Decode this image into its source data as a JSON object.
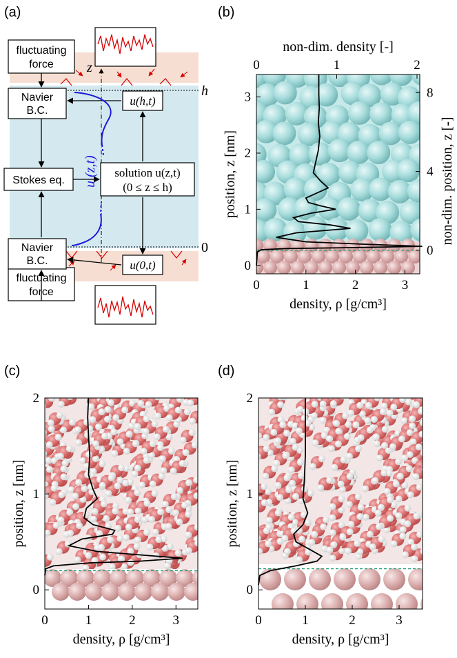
{
  "panel_a": {
    "label": "(a)",
    "top_force": [
      "fluctuating",
      "force"
    ],
    "bottom_force": [
      "fluctuating",
      "force"
    ],
    "navier_top": [
      "Navier",
      "B.C."
    ],
    "navier_bottom": [
      "Navier",
      "B.C."
    ],
    "stokes": "Stokes eq.",
    "solution_line1": "solution u(z,t)",
    "solution_line2": "(0 ≤ z ≤ h)",
    "u_top": "u(h,t)",
    "u_bottom": "u(0,t)",
    "profile_label": "u (z,t)",
    "z_axis": "z",
    "h_label": "h",
    "zero_label": "0"
  },
  "chart_data": [
    {
      "panel": "(b)",
      "type": "line",
      "xlabel": "density, ρ [g/cm³]",
      "ylabel": "position, z [nm]",
      "top_xlabel": "non-dim. density [-]",
      "right_ylabel": "non-dim. position, z [-]",
      "xlim": [
        0,
        3.3
      ],
      "ylim": [
        -0.15,
        3.4
      ],
      "xticks": [
        "0",
        "1",
        "2",
        "3"
      ],
      "yticks": [
        "0",
        "1",
        "2",
        "3"
      ],
      "top_ticks": [
        "0",
        "1",
        "2"
      ],
      "right_ticks": [
        "0",
        "4",
        "8"
      ],
      "wall_line_z": 0.27,
      "x": [
        0,
        0.02,
        0.1,
        0.6,
        2.2,
        3.35,
        2.4,
        1.0,
        0.4,
        0.8,
        1.9,
        1.5,
        0.85,
        0.75,
        1.1,
        1.6,
        1.3,
        1.05,
        1.0,
        1.2,
        1.45,
        1.3,
        1.15,
        1.2,
        1.25,
        1.28,
        1.25,
        1.27,
        1.26,
        1.26,
        1.26
      ],
      "y": [
        0.0,
        0.24,
        0.28,
        0.3,
        0.32,
        0.34,
        0.37,
        0.42,
        0.5,
        0.58,
        0.66,
        0.72,
        0.78,
        0.85,
        0.93,
        1.0,
        1.06,
        1.12,
        1.2,
        1.28,
        1.38,
        1.5,
        1.65,
        1.85,
        2.05,
        2.3,
        2.55,
        2.8,
        3.05,
        3.25,
        3.4
      ]
    },
    {
      "panel": "(c)",
      "type": "line",
      "xlabel": "density, ρ [g/cm³]",
      "ylabel": "position, z [nm]",
      "xlim": [
        0,
        3.5
      ],
      "ylim": [
        -0.2,
        2.0
      ],
      "xticks": [
        "0",
        "1",
        "2",
        "3"
      ],
      "yticks": [
        "0",
        "1",
        "2"
      ],
      "wall_line_z": 0.2,
      "x": [
        0,
        0.02,
        0.2,
        1.0,
        2.2,
        3.15,
        2.3,
        1.2,
        0.55,
        0.85,
        1.55,
        1.6,
        1.1,
        0.9,
        0.95,
        1.2,
        1.1,
        1.0,
        1.03,
        1.0,
        0.98,
        1.0
      ],
      "y": [
        0.15,
        0.22,
        0.25,
        0.28,
        0.3,
        0.33,
        0.36,
        0.4,
        0.46,
        0.53,
        0.58,
        0.62,
        0.68,
        0.75,
        0.85,
        0.95,
        1.05,
        1.2,
        1.4,
        1.6,
        1.8,
        2.0
      ]
    },
    {
      "panel": "(d)",
      "type": "line",
      "xlabel": "density, ρ [g/cm³]",
      "ylabel": "position, z [nm]",
      "xlim": [
        0,
        3.5
      ],
      "ylim": [
        -0.2,
        2.0
      ],
      "xticks": [
        "0",
        "1",
        "2",
        "3"
      ],
      "yticks": [
        "0",
        "1",
        "2"
      ],
      "wall_line_z": 0.22,
      "x": [
        0,
        0.03,
        0.25,
        0.8,
        1.25,
        1.35,
        1.1,
        0.8,
        0.75,
        0.95,
        1.05,
        0.95,
        0.98,
        1.0,
        1.0,
        1.0
      ],
      "y": [
        0.05,
        0.15,
        0.2,
        0.25,
        0.3,
        0.35,
        0.42,
        0.5,
        0.58,
        0.68,
        0.8,
        0.95,
        1.15,
        1.4,
        1.7,
        2.0
      ]
    }
  ]
}
